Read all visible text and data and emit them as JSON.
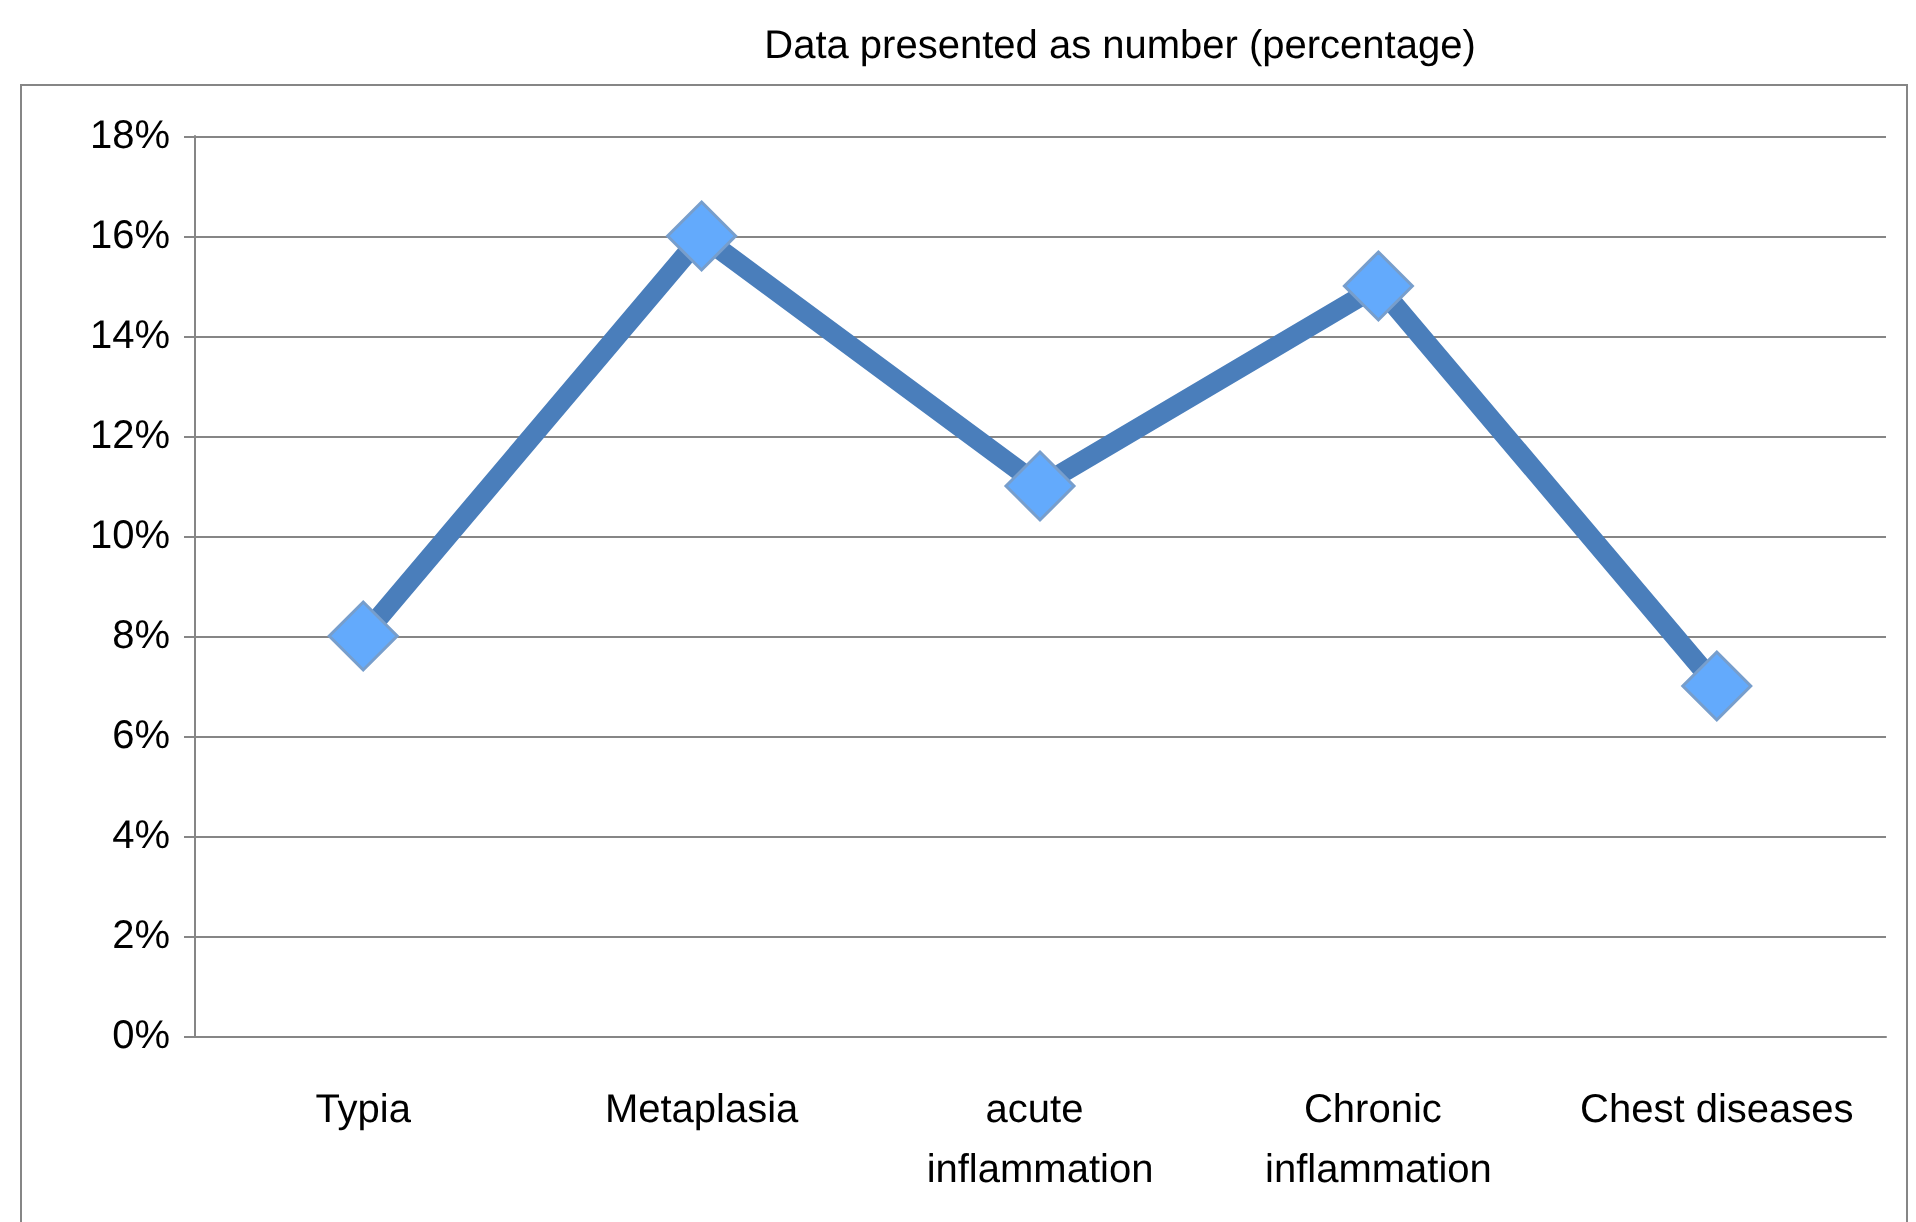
{
  "chart_data": {
    "type": "line",
    "title": "Data presented as number (percentage)",
    "categories": [
      "Typia",
      "Metaplasia",
      "acute inflammation",
      "Chronic inflammation",
      "Chest diseases"
    ],
    "series": [
      {
        "color": "#4a7ebb",
        "values": [
          8,
          16,
          11,
          15,
          7
        ]
      }
    ],
    "ylim": [
      0,
      18
    ],
    "yticks": [
      {
        "value": 0,
        "label": "0%"
      },
      {
        "value": 2,
        "label": "2%"
      },
      {
        "value": 4,
        "label": "4%"
      },
      {
        "value": 6,
        "label": "6%"
      },
      {
        "value": 8,
        "label": "8%"
      },
      {
        "value": 10,
        "label": "10%"
      },
      {
        "value": 12,
        "label": "12%"
      },
      {
        "value": 14,
        "label": "14%"
      },
      {
        "value": 16,
        "label": "16%"
      },
      {
        "value": 18,
        "label": "18%"
      }
    ],
    "grid": "y",
    "marker": "diamond",
    "line_style": "solid"
  }
}
